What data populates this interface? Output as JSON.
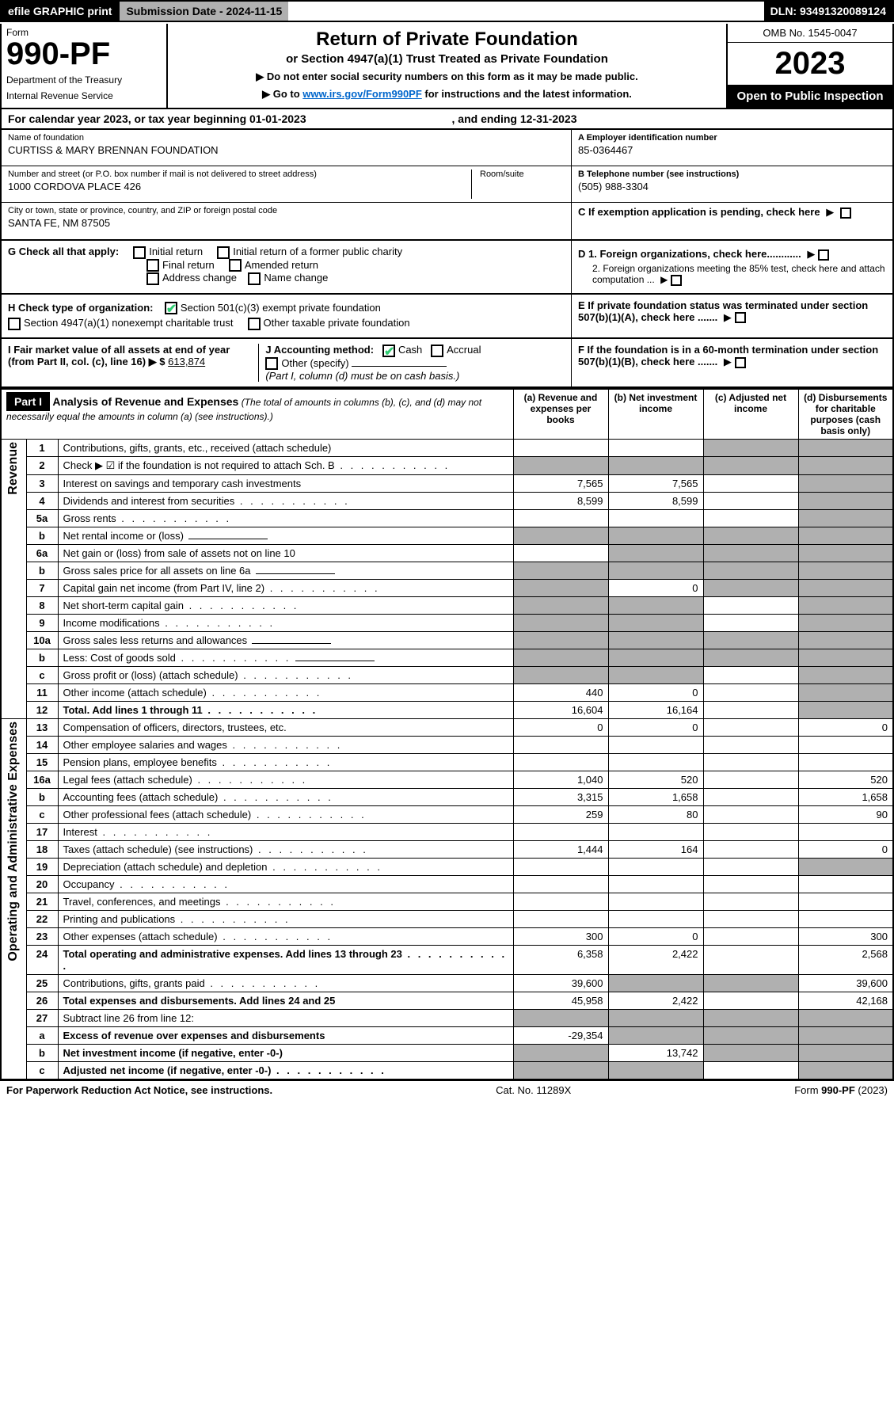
{
  "top_bar": {
    "efile": "efile GRAPHIC print",
    "submission": "Submission Date - 2024-11-15",
    "dln": "DLN: 93491320089124"
  },
  "header": {
    "form_label": "Form",
    "form_number": "990-PF",
    "dept1": "Department of the Treasury",
    "dept2": "Internal Revenue Service",
    "title": "Return of Private Foundation",
    "subtitle": "or Section 4947(a)(1) Trust Treated as Private Foundation",
    "note1": "▶ Do not enter social security numbers on this form as it may be made public.",
    "note2_pre": "▶ Go to ",
    "note2_link": "www.irs.gov/Form990PF",
    "note2_post": " for instructions and the latest information.",
    "omb": "OMB No. 1545-0047",
    "year": "2023",
    "open_public": "Open to Public Inspection"
  },
  "cal_year": {
    "prefix": "For calendar year 2023, or tax year beginning ",
    "begin": "01-01-2023",
    "mid": " , and ending ",
    "end": "12-31-2023"
  },
  "name_block": {
    "label": "Name of foundation",
    "value": "CURTISS & MARY BRENNAN FOUNDATION"
  },
  "address_block": {
    "label": "Number and street (or P.O. box number if mail is not delivered to street address)",
    "value": "1000 CORDOVA PLACE 426",
    "room_label": "Room/suite"
  },
  "city_block": {
    "label": "City or town, state or province, country, and ZIP or foreign postal code",
    "value": "SANTA FE, NM  87505"
  },
  "ein_block": {
    "label": "A Employer identification number",
    "value": "85-0364467"
  },
  "tel_block": {
    "label": "B Telephone number (see instructions)",
    "value": "(505) 988-3304"
  },
  "c_block": {
    "label": "C If exemption application is pending, check here"
  },
  "d_block": {
    "d1": "D 1. Foreign organizations, check here............",
    "d2": "2. Foreign organizations meeting the 85% test, check here and attach computation ..."
  },
  "e_block": {
    "label": "E  If private foundation status was terminated under section 507(b)(1)(A), check here ......."
  },
  "f_block": {
    "label": "F  If the foundation is in a 60-month termination under section 507(b)(1)(B), check here ......."
  },
  "g_block": {
    "label": "G Check all that apply:",
    "opts": [
      "Initial return",
      "Initial return of a former public charity",
      "Final return",
      "Amended return",
      "Address change",
      "Name change"
    ]
  },
  "h_block": {
    "label": "H Check type of organization:",
    "opt1": "Section 501(c)(3) exempt private foundation",
    "opt2": "Section 4947(a)(1) nonexempt charitable trust",
    "opt3": "Other taxable private foundation"
  },
  "i_block": {
    "label": "I Fair market value of all assets at end of year (from Part II, col. (c), line 16) ▶ $",
    "value": "613,874"
  },
  "j_block": {
    "label": "J Accounting method:",
    "cash": "Cash",
    "accrual": "Accrual",
    "other": "Other (specify)",
    "note": "(Part I, column (d) must be on cash basis.)"
  },
  "part1": {
    "tag": "Part I",
    "title": "Analysis of Revenue and Expenses",
    "note": "(The total of amounts in columns (b), (c), and (d) may not necessarily equal the amounts in column (a) (see instructions).)",
    "col_a": "(a) Revenue and expenses per books",
    "col_b": "(b) Net investment income",
    "col_c": "(c) Adjusted net income",
    "col_d": "(d) Disbursements for charitable purposes (cash basis only)"
  },
  "vert_labels": {
    "revenue": "Revenue",
    "expenses": "Operating and Administrative Expenses"
  },
  "rows": [
    {
      "n": "1",
      "d": "Contributions, gifts, grants, etc., received (attach schedule)",
      "a": "",
      "b": "",
      "c": "shaded",
      "dd": "shaded"
    },
    {
      "n": "2",
      "d": "Check ▶ ☑ if the foundation is not required to attach Sch. B",
      "dots": true,
      "a": "shaded",
      "b": "shaded",
      "c": "shaded",
      "dd": "shaded"
    },
    {
      "n": "3",
      "d": "Interest on savings and temporary cash investments",
      "a": "7,565",
      "b": "7,565",
      "c": "",
      "dd": "shaded"
    },
    {
      "n": "4",
      "d": "Dividends and interest from securities",
      "dots": true,
      "a": "8,599",
      "b": "8,599",
      "c": "",
      "dd": "shaded"
    },
    {
      "n": "5a",
      "d": "Gross rents",
      "dots": true,
      "a": "",
      "b": "",
      "c": "",
      "dd": "shaded"
    },
    {
      "n": "b",
      "d": "Net rental income or (loss)",
      "inline": true,
      "a": "shaded",
      "b": "shaded",
      "c": "shaded",
      "dd": "shaded"
    },
    {
      "n": "6a",
      "d": "Net gain or (loss) from sale of assets not on line 10",
      "a": "",
      "b": "shaded",
      "c": "shaded",
      "dd": "shaded"
    },
    {
      "n": "b",
      "d": "Gross sales price for all assets on line 6a",
      "inline": true,
      "a": "shaded",
      "b": "shaded",
      "c": "shaded",
      "dd": "shaded"
    },
    {
      "n": "7",
      "d": "Capital gain net income (from Part IV, line 2)",
      "dots": true,
      "a": "shaded",
      "b": "0",
      "c": "shaded",
      "dd": "shaded"
    },
    {
      "n": "8",
      "d": "Net short-term capital gain",
      "dots": true,
      "a": "shaded",
      "b": "shaded",
      "c": "",
      "dd": "shaded"
    },
    {
      "n": "9",
      "d": "Income modifications",
      "dots": true,
      "a": "shaded",
      "b": "shaded",
      "c": "",
      "dd": "shaded"
    },
    {
      "n": "10a",
      "d": "Gross sales less returns and allowances",
      "inline": true,
      "a": "shaded",
      "b": "shaded",
      "c": "shaded",
      "dd": "shaded"
    },
    {
      "n": "b",
      "d": "Less: Cost of goods sold",
      "dots": true,
      "inline": true,
      "a": "shaded",
      "b": "shaded",
      "c": "shaded",
      "dd": "shaded"
    },
    {
      "n": "c",
      "d": "Gross profit or (loss) (attach schedule)",
      "dots": true,
      "a": "shaded",
      "b": "shaded",
      "c": "",
      "dd": "shaded"
    },
    {
      "n": "11",
      "d": "Other income (attach schedule)",
      "dots": true,
      "a": "440",
      "b": "0",
      "c": "",
      "dd": "shaded"
    },
    {
      "n": "12",
      "d": "Total. Add lines 1 through 11",
      "dots": true,
      "bold": true,
      "a": "16,604",
      "b": "16,164",
      "c": "",
      "dd": "shaded"
    },
    {
      "n": "13",
      "d": "Compensation of officers, directors, trustees, etc.",
      "a": "0",
      "b": "0",
      "c": "",
      "dd": "0"
    },
    {
      "n": "14",
      "d": "Other employee salaries and wages",
      "dots": true,
      "a": "",
      "b": "",
      "c": "",
      "dd": ""
    },
    {
      "n": "15",
      "d": "Pension plans, employee benefits",
      "dots": true,
      "a": "",
      "b": "",
      "c": "",
      "dd": ""
    },
    {
      "n": "16a",
      "d": "Legal fees (attach schedule)",
      "dots": true,
      "a": "1,040",
      "b": "520",
      "c": "",
      "dd": "520"
    },
    {
      "n": "b",
      "d": "Accounting fees (attach schedule)",
      "dots": true,
      "a": "3,315",
      "b": "1,658",
      "c": "",
      "dd": "1,658"
    },
    {
      "n": "c",
      "d": "Other professional fees (attach schedule)",
      "dots": true,
      "a": "259",
      "b": "80",
      "c": "",
      "dd": "90"
    },
    {
      "n": "17",
      "d": "Interest",
      "dots": true,
      "a": "",
      "b": "",
      "c": "",
      "dd": ""
    },
    {
      "n": "18",
      "d": "Taxes (attach schedule) (see instructions)",
      "dots": true,
      "a": "1,444",
      "b": "164",
      "c": "",
      "dd": "0"
    },
    {
      "n": "19",
      "d": "Depreciation (attach schedule) and depletion",
      "dots": true,
      "a": "",
      "b": "",
      "c": "",
      "dd": "shaded"
    },
    {
      "n": "20",
      "d": "Occupancy",
      "dots": true,
      "a": "",
      "b": "",
      "c": "",
      "dd": ""
    },
    {
      "n": "21",
      "d": "Travel, conferences, and meetings",
      "dots": true,
      "a": "",
      "b": "",
      "c": "",
      "dd": ""
    },
    {
      "n": "22",
      "d": "Printing and publications",
      "dots": true,
      "a": "",
      "b": "",
      "c": "",
      "dd": ""
    },
    {
      "n": "23",
      "d": "Other expenses (attach schedule)",
      "dots": true,
      "a": "300",
      "b": "0",
      "c": "",
      "dd": "300"
    },
    {
      "n": "24",
      "d": "Total operating and administrative expenses. Add lines 13 through 23",
      "dots": true,
      "bold": true,
      "a": "6,358",
      "b": "2,422",
      "c": "",
      "dd": "2,568"
    },
    {
      "n": "25",
      "d": "Contributions, gifts, grants paid",
      "dots": true,
      "a": "39,600",
      "b": "shaded",
      "c": "shaded",
      "dd": "39,600"
    },
    {
      "n": "26",
      "d": "Total expenses and disbursements. Add lines 24 and 25",
      "bold": true,
      "a": "45,958",
      "b": "2,422",
      "c": "",
      "dd": "42,168"
    },
    {
      "n": "27",
      "d": "Subtract line 26 from line 12:",
      "a": "shaded",
      "b": "shaded",
      "c": "shaded",
      "dd": "shaded"
    },
    {
      "n": "a",
      "d": "Excess of revenue over expenses and disbursements",
      "bold": true,
      "a": "-29,354",
      "b": "shaded",
      "c": "shaded",
      "dd": "shaded"
    },
    {
      "n": "b",
      "d": "Net investment income (if negative, enter -0-)",
      "bold": true,
      "a": "shaded",
      "b": "13,742",
      "c": "shaded",
      "dd": "shaded"
    },
    {
      "n": "c",
      "d": "Adjusted net income (if negative, enter -0-)",
      "dots": true,
      "bold": true,
      "a": "shaded",
      "b": "shaded",
      "c": "",
      "dd": "shaded"
    }
  ],
  "footer": {
    "left": "For Paperwork Reduction Act Notice, see instructions.",
    "mid": "Cat. No. 11289X",
    "right": "Form 990-PF (2023)"
  }
}
